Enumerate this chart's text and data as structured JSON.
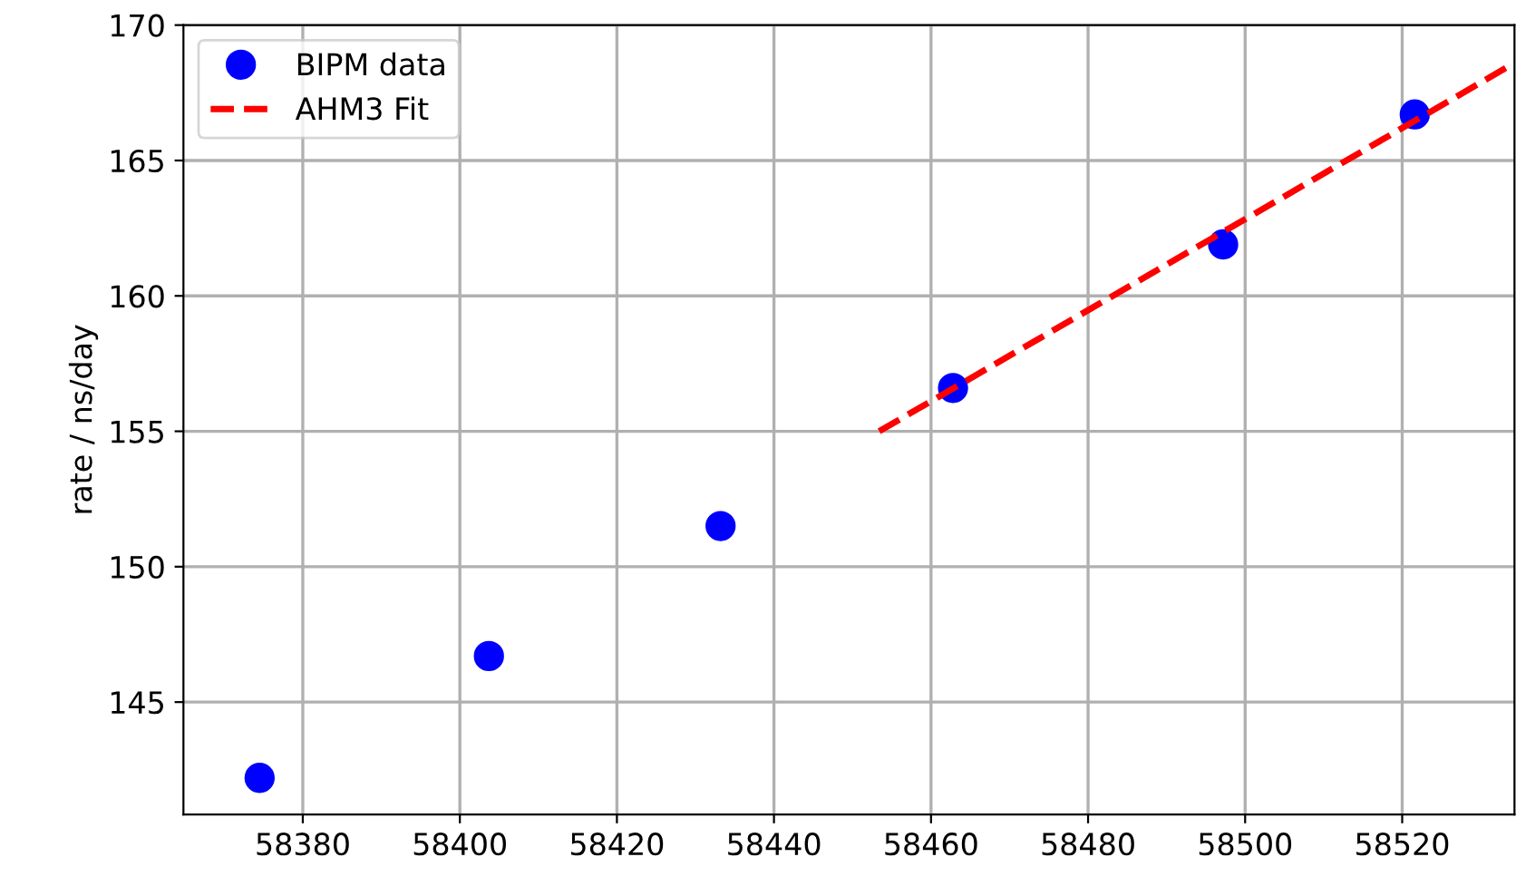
{
  "chart_data": {
    "type": "scatter",
    "ylabel": "rate / ns/day",
    "xlim": [
      58364.8,
      58534.3
    ],
    "ylim": [
      140.85,
      170
    ],
    "xticks": [
      58380,
      58400,
      58420,
      58440,
      58460,
      58480,
      58500,
      58520
    ],
    "yticks": [
      145,
      150,
      155,
      160,
      165,
      170
    ],
    "grid": true,
    "legend": "top left",
    "series": [
      {
        "name": "BIPM data",
        "color": "#0000ff",
        "marker": "circle",
        "x": [
          58374.5,
          58403.7,
          58433.2,
          58462.8,
          58497.2,
          58521.6
        ],
        "values": [
          142.2,
          146.7,
          151.5,
          156.6,
          161.9,
          166.7
        ]
      },
      {
        "name": "AHM3 Fit",
        "type": "line",
        "color": "#ff0000",
        "line_style": "dashed",
        "x": [
          58453.4,
          58534.3
        ],
        "values": [
          155.0,
          168.6
        ]
      }
    ]
  }
}
